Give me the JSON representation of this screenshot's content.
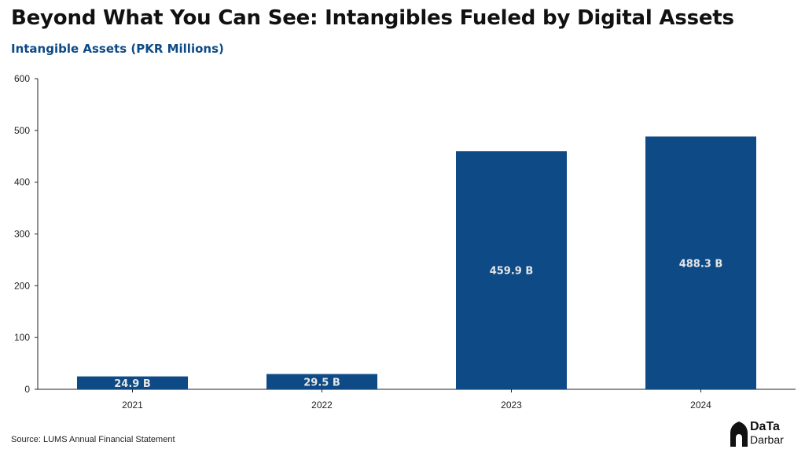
{
  "title": "Beyond What You Can See: Intangibles Fueled by Digital Assets",
  "subtitle": "Intangible Assets (PKR Millions)",
  "source": "Source: LUMS Annual Financial Statement",
  "logo": {
    "top": "DaTa",
    "bottom": "Darbar",
    "icon": "mosque-dome-icon"
  },
  "colors": {
    "bar": "#0d4a86",
    "title": "#111111",
    "subtitle": "#0d4a86",
    "data_label": "#e6e6e6"
  },
  "chart_data": {
    "type": "bar",
    "title": "Intangible Assets (PKR Millions)",
    "categories": [
      "2021",
      "2022",
      "2023",
      "2024"
    ],
    "values": [
      24.9,
      29.5,
      459.9,
      488.3
    ],
    "data_labels": [
      "24.9 B",
      "29.5 B",
      "459.9 B",
      "488.3 B"
    ],
    "xlabel": "",
    "ylabel": "",
    "ylim": [
      0,
      600
    ],
    "yticks": [
      0,
      100,
      200,
      300,
      400,
      500,
      600
    ],
    "grid": false,
    "legend": "none"
  }
}
